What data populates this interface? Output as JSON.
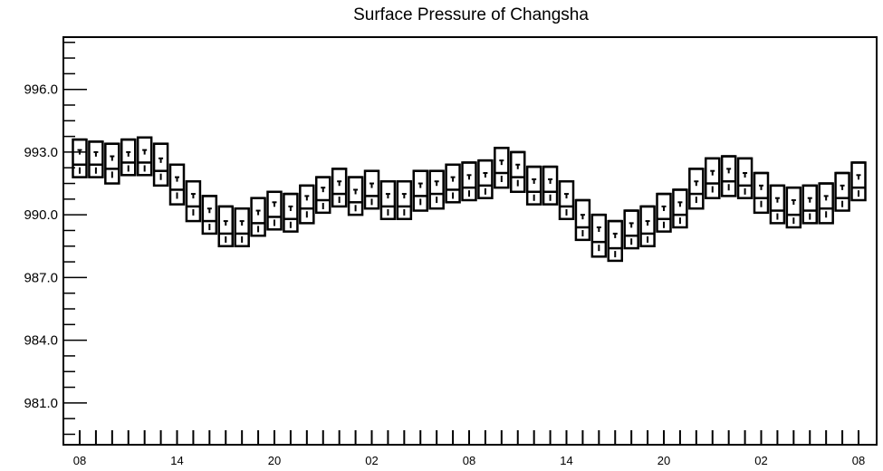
{
  "chart_data": {
    "type": "box",
    "title": "Surface Pressure of Changsha",
    "xlabel": "",
    "ylabel": "",
    "ylim": [
      979.0,
      998.5
    ],
    "yticks": [
      981.0,
      984.0,
      987.0,
      990.0,
      993.0,
      996.0
    ],
    "ytick_labels": [
      "981.0",
      "984.0",
      "987.0",
      "990.0",
      "993.0",
      "996.0"
    ],
    "x_range": [
      0,
      48
    ],
    "xtick_positions": [
      0,
      6,
      12,
      18,
      24,
      30,
      36,
      42,
      48
    ],
    "xtick_labels": [
      "08",
      "14",
      "20",
      "02",
      "08",
      "14",
      "20",
      "02",
      "08"
    ],
    "grid": false,
    "legend": "none",
    "boxes": [
      {
        "x": 0,
        "max": 993.6,
        "q3": 993.1,
        "median": 992.4,
        "q1": 991.8,
        "min": 991.8
      },
      {
        "x": 1,
        "max": 993.5,
        "q3": 993.0,
        "median": 992.4,
        "q1": 991.8,
        "min": 991.8
      },
      {
        "x": 2,
        "max": 993.4,
        "q3": 992.8,
        "median": 992.2,
        "q1": 991.5,
        "min": 991.5
      },
      {
        "x": 3,
        "max": 993.6,
        "q3": 993.0,
        "median": 992.5,
        "q1": 991.9,
        "min": 991.9
      },
      {
        "x": 4,
        "max": 993.7,
        "q3": 993.1,
        "median": 992.5,
        "q1": 991.9,
        "min": 991.9
      },
      {
        "x": 5,
        "max": 993.4,
        "q3": 992.7,
        "median": 992.1,
        "q1": 991.4,
        "min": 991.4
      },
      {
        "x": 6,
        "max": 992.4,
        "q3": 991.8,
        "median": 991.2,
        "q1": 990.5,
        "min": 990.5
      },
      {
        "x": 7,
        "max": 991.6,
        "q3": 991.0,
        "median": 990.4,
        "q1": 989.7,
        "min": 989.7
      },
      {
        "x": 8,
        "max": 990.9,
        "q3": 990.3,
        "median": 989.7,
        "q1": 989.1,
        "min": 989.1
      },
      {
        "x": 9,
        "max": 990.4,
        "q3": 989.7,
        "median": 989.1,
        "q1": 988.5,
        "min": 988.5
      },
      {
        "x": 10,
        "max": 990.3,
        "q3": 989.7,
        "median": 989.1,
        "q1": 988.5,
        "min": 988.5
      },
      {
        "x": 11,
        "max": 990.8,
        "q3": 990.2,
        "median": 989.6,
        "q1": 989.0,
        "min": 989.0
      },
      {
        "x": 12,
        "max": 991.1,
        "q3": 990.6,
        "median": 989.9,
        "q1": 989.3,
        "min": 989.3
      },
      {
        "x": 13,
        "max": 991.0,
        "q3": 990.4,
        "median": 989.8,
        "q1": 989.2,
        "min": 989.2
      },
      {
        "x": 14,
        "max": 991.4,
        "q3": 990.9,
        "median": 990.3,
        "q1": 989.6,
        "min": 989.6
      },
      {
        "x": 15,
        "max": 991.8,
        "q3": 991.3,
        "median": 990.7,
        "q1": 990.1,
        "min": 990.1
      },
      {
        "x": 16,
        "max": 992.2,
        "q3": 991.6,
        "median": 991.0,
        "q1": 990.4,
        "min": 990.4
      },
      {
        "x": 17,
        "max": 991.8,
        "q3": 991.2,
        "median": 990.6,
        "q1": 990.0,
        "min": 990.0
      },
      {
        "x": 18,
        "max": 992.1,
        "q3": 991.5,
        "median": 990.9,
        "q1": 990.3,
        "min": 990.3
      },
      {
        "x": 19,
        "max": 991.6,
        "q3": 991.0,
        "median": 990.4,
        "q1": 989.8,
        "min": 989.8
      },
      {
        "x": 20,
        "max": 991.6,
        "q3": 991.0,
        "median": 990.4,
        "q1": 989.8,
        "min": 989.8
      },
      {
        "x": 21,
        "max": 992.1,
        "q3": 991.5,
        "median": 990.9,
        "q1": 990.2,
        "min": 990.2
      },
      {
        "x": 22,
        "max": 992.1,
        "q3": 991.6,
        "median": 991.0,
        "q1": 990.3,
        "min": 990.3
      },
      {
        "x": 23,
        "max": 992.4,
        "q3": 991.8,
        "median": 991.2,
        "q1": 990.6,
        "min": 990.6
      },
      {
        "x": 24,
        "max": 992.5,
        "q3": 991.9,
        "median": 991.3,
        "q1": 990.7,
        "min": 990.7
      },
      {
        "x": 25,
        "max": 992.6,
        "q3": 992.0,
        "median": 991.4,
        "q1": 990.8,
        "min": 990.8
      },
      {
        "x": 26,
        "max": 993.2,
        "q3": 992.6,
        "median": 992.0,
        "q1": 991.3,
        "min": 991.3
      },
      {
        "x": 27,
        "max": 993.0,
        "q3": 992.4,
        "median": 991.8,
        "q1": 991.1,
        "min": 991.1
      },
      {
        "x": 28,
        "max": 992.3,
        "q3": 991.7,
        "median": 991.1,
        "q1": 990.5,
        "min": 990.5
      },
      {
        "x": 29,
        "max": 992.3,
        "q3": 991.7,
        "median": 991.1,
        "q1": 990.5,
        "min": 990.5
      },
      {
        "x": 30,
        "max": 991.6,
        "q3": 991.0,
        "median": 990.4,
        "q1": 989.8,
        "min": 989.8
      },
      {
        "x": 31,
        "max": 990.7,
        "q3": 990.0,
        "median": 989.4,
        "q1": 988.8,
        "min": 988.8
      },
      {
        "x": 32,
        "max": 990.0,
        "q3": 989.4,
        "median": 988.7,
        "q1": 988.0,
        "min": 988.0
      },
      {
        "x": 33,
        "max": 989.7,
        "q3": 989.1,
        "median": 988.4,
        "q1": 987.8,
        "min": 987.8
      },
      {
        "x": 34,
        "max": 990.2,
        "q3": 989.6,
        "median": 989.0,
        "q1": 988.4,
        "min": 988.4
      },
      {
        "x": 35,
        "max": 990.4,
        "q3": 989.7,
        "median": 989.1,
        "q1": 988.5,
        "min": 988.5
      },
      {
        "x": 36,
        "max": 991.0,
        "q3": 990.4,
        "median": 989.8,
        "q1": 989.2,
        "min": 989.2
      },
      {
        "x": 37,
        "max": 991.2,
        "q3": 990.6,
        "median": 990.0,
        "q1": 989.4,
        "min": 989.4
      },
      {
        "x": 38,
        "max": 992.2,
        "q3": 991.6,
        "median": 991.0,
        "q1": 990.3,
        "min": 990.3
      },
      {
        "x": 39,
        "max": 992.7,
        "q3": 992.1,
        "median": 991.5,
        "q1": 990.8,
        "min": 990.8
      },
      {
        "x": 40,
        "max": 992.8,
        "q3": 992.2,
        "median": 991.6,
        "q1": 990.9,
        "min": 990.9
      },
      {
        "x": 41,
        "max": 992.7,
        "q3": 992.0,
        "median": 991.4,
        "q1": 990.8,
        "min": 990.8
      },
      {
        "x": 42,
        "max": 992.0,
        "q3": 991.4,
        "median": 990.8,
        "q1": 990.1,
        "min": 990.1
      },
      {
        "x": 43,
        "max": 991.4,
        "q3": 990.8,
        "median": 990.2,
        "q1": 989.6,
        "min": 989.6
      },
      {
        "x": 44,
        "max": 991.3,
        "q3": 990.7,
        "median": 990.0,
        "q1": 989.4,
        "min": 989.4
      },
      {
        "x": 45,
        "max": 991.4,
        "q3": 990.8,
        "median": 990.2,
        "q1": 989.6,
        "min": 989.6
      },
      {
        "x": 46,
        "max": 991.5,
        "q3": 990.9,
        "median": 990.3,
        "q1": 989.6,
        "min": 989.6
      },
      {
        "x": 47,
        "max": 992.0,
        "q3": 991.4,
        "median": 990.8,
        "q1": 990.2,
        "min": 990.2
      },
      {
        "x": 48,
        "max": 992.5,
        "q3": 991.9,
        "median": 991.3,
        "q1": 990.7,
        "min": 990.7
      }
    ]
  }
}
